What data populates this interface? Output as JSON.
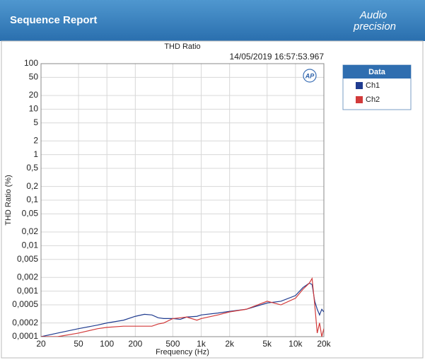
{
  "header": {
    "title": "Sequence Report",
    "logo_top": "Audio",
    "logo_bottom": "precision"
  },
  "chart_data": {
    "type": "line",
    "title": "THD Ratio",
    "subtitle": "14/05/2019 16:57:53.967",
    "badge": "AP",
    "x_label": "Frequency (Hz)",
    "y_label": "THD Ratio (%)",
    "legend_title": "Data",
    "log_x": true,
    "log_y": true,
    "grid": true,
    "legend": "right",
    "xlim": [
      20,
      20000
    ],
    "ylim": [
      0.0001,
      100
    ],
    "xticks": [
      20,
      50,
      100,
      200,
      500,
      {
        "value": 1000,
        "label": "1k"
      },
      {
        "value": 2000,
        "label": "2k"
      },
      {
        "value": 5000,
        "label": "5k"
      },
      {
        "value": 10000,
        "label": "10k"
      },
      {
        "value": 20000,
        "label": "20k"
      }
    ],
    "yticks": [
      100,
      50,
      20,
      10,
      5,
      2,
      1,
      {
        "value": 0.5,
        "label": "0,5"
      },
      {
        "value": 0.2,
        "label": "0,2"
      },
      {
        "value": 0.1,
        "label": "0,1"
      },
      {
        "value": 0.05,
        "label": "0,05"
      },
      {
        "value": 0.02,
        "label": "0,02"
      },
      {
        "value": 0.01,
        "label": "0,01"
      },
      {
        "value": 0.005,
        "label": "0,005"
      },
      {
        "value": 0.002,
        "label": "0,002"
      },
      {
        "value": 0.001,
        "label": "0,001"
      },
      {
        "value": 0.0005,
        "label": "0,0005"
      },
      {
        "value": 0.0002,
        "label": "0,0002"
      },
      {
        "value": 0.0001,
        "label": "0,0001"
      }
    ],
    "x": [
      20,
      30,
      50,
      80,
      100,
      150,
      200,
      250,
      300,
      350,
      400,
      500,
      600,
      700,
      900,
      1000,
      1500,
      2000,
      3000,
      5000,
      7000,
      10000,
      12000,
      14000,
      15000,
      16000,
      17000,
      18000,
      19000,
      20000
    ],
    "series": [
      {
        "name": "Ch1",
        "color": "#1f3b8f",
        "values": [
          0.0001,
          0.00012,
          0.00015,
          0.00018,
          0.0002,
          0.00023,
          0.00028,
          0.00031,
          0.0003,
          0.00026,
          0.00025,
          0.00025,
          0.00024,
          0.00027,
          0.00028,
          0.0003,
          0.00033,
          0.00036,
          0.0004,
          0.00055,
          0.0006,
          0.0008,
          0.0012,
          0.0015,
          0.0014,
          0.0006,
          0.0004,
          0.0003,
          0.0004,
          0.00035
        ]
      },
      {
        "name": "Ch2",
        "color": "#d23a3a",
        "values": [
          0.0001,
          0.0001,
          0.00012,
          0.00015,
          0.00016,
          0.00017,
          0.00017,
          0.00017,
          0.00017,
          0.00019,
          0.0002,
          0.00025,
          0.00026,
          0.00027,
          0.00023,
          0.00025,
          0.0003,
          0.00035,
          0.0004,
          0.0006,
          0.0005,
          0.0007,
          0.0011,
          0.0015,
          0.0019,
          0.0005,
          0.00012,
          0.0002,
          0.0001,
          0.00015
        ]
      }
    ]
  }
}
